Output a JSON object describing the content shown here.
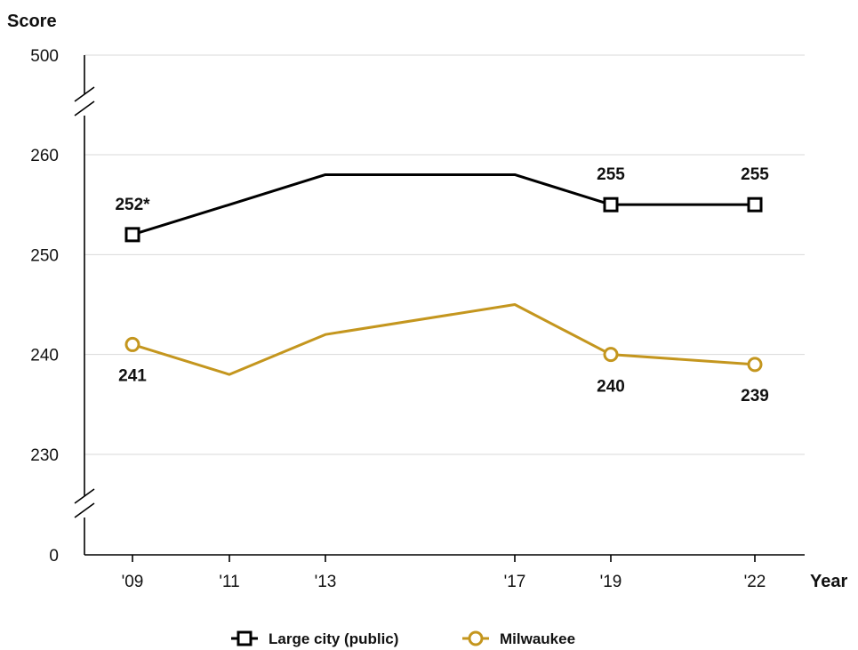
{
  "chart_data": {
    "type": "line",
    "ylabel": "Score",
    "xlabel": "Year",
    "x": [
      "'09",
      "'11",
      "'13",
      "'17",
      "'19",
      "'22"
    ],
    "y_ticks": [
      "0",
      "230",
      "240",
      "250",
      "260",
      "500"
    ],
    "y_axis_breaks": [
      "between 0 and 230",
      "between 260 and 500"
    ],
    "ylim": [
      230,
      260
    ],
    "grid": true,
    "legend_position": "bottom",
    "series": [
      {
        "name": "Large city (public)",
        "values": [
          252,
          255,
          258,
          258,
          255,
          255
        ],
        "marker": "square",
        "color": "#000000",
        "data_labels": [
          "252*",
          null,
          null,
          null,
          "255",
          "255"
        ]
      },
      {
        "name": "Milwaukee",
        "values": [
          241,
          238,
          242,
          245,
          240,
          239
        ],
        "marker": "circle",
        "color": "#C4961E",
        "data_labels": [
          "241",
          null,
          null,
          null,
          "240",
          "239"
        ]
      }
    ]
  }
}
